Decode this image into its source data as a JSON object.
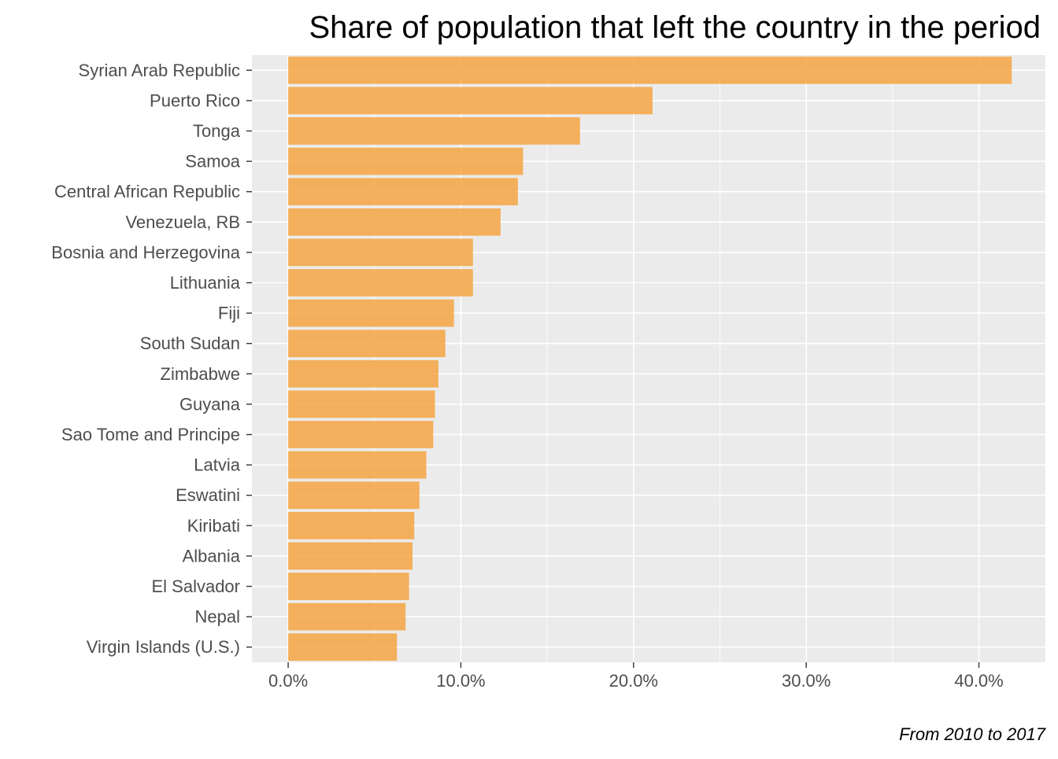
{
  "colors": {
    "bar": "#f5a442",
    "panel": "#ebebeb",
    "grid_major": "#ffffff",
    "tick": "#333333",
    "text": "#4d4d4d"
  },
  "chart_data": {
    "type": "bar",
    "orientation": "horizontal",
    "title": "Share of population that left the country in the period",
    "caption": "From 2010 to 2017",
    "xlabel": "",
    "ylabel": "",
    "xlim": [
      -0.021,
      0.4385
    ],
    "x_ticks": [
      0,
      0.1,
      0.2,
      0.3,
      0.4
    ],
    "x_tick_labels": [
      "0.0%",
      "10.0%",
      "20.0%",
      "30.0%",
      "40.0%"
    ],
    "categories": [
      "Syrian Arab Republic",
      "Puerto Rico",
      "Tonga",
      "Samoa",
      "Central African Republic",
      "Venezuela, RB",
      "Bosnia and Herzegovina",
      "Lithuania",
      "Fiji",
      "South Sudan",
      "Zimbabwe",
      "Guyana",
      "Sao Tome and Principe",
      "Latvia",
      "Eswatini",
      "Kiribati",
      "Albania",
      "El Salvador",
      "Nepal",
      "Virgin Islands (U.S.)"
    ],
    "values": [
      0.419,
      0.211,
      0.169,
      0.136,
      0.133,
      0.123,
      0.107,
      0.107,
      0.096,
      0.091,
      0.087,
      0.085,
      0.084,
      0.08,
      0.076,
      0.073,
      0.072,
      0.07,
      0.068,
      0.063
    ],
    "grid": true,
    "legend": "none"
  }
}
